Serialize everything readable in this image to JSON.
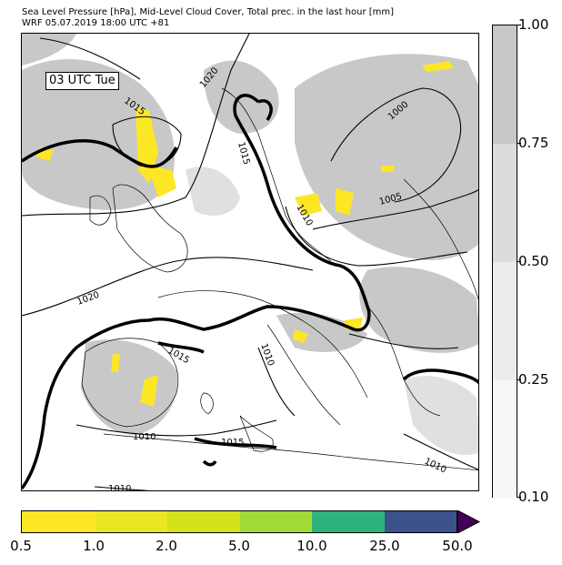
{
  "title_line1": "Sea Level Pressure [hPa], Mid-Level Cloud Cover, Total prec. in the last hour [mm]",
  "title_line2": "WRF 05.07.2019 18:00 UTC +81",
  "time_label": "03 UTC Tue",
  "isobar_labels": [
    "1015",
    "1020",
    "1015",
    "1000",
    "1010",
    "1005",
    "1020",
    "1010",
    "1015",
    "1010",
    "1015",
    "1010",
    "1010"
  ],
  "cloud_cover_colorbar": {
    "ticks": [
      "1.00",
      "0.75",
      "0.50",
      "0.25",
      "0.10"
    ],
    "colors": [
      "#c8c8c8",
      "#dcdcdc",
      "#ececec",
      "#f8f8f8"
    ]
  },
  "precip_colorbar": {
    "ticks": [
      "0.5",
      "1.0",
      "2.0",
      "5.0",
      "10.0",
      "25.0",
      "50.0"
    ],
    "colors": [
      "#fde725",
      "#e9e622",
      "#d2e21b",
      "#a2da37",
      "#2eb37c",
      "#3b528b",
      "#440154"
    ]
  },
  "colors": {
    "land_border": "#000000",
    "cloud": "#c8c8c8",
    "precip_light": "#fde725"
  }
}
